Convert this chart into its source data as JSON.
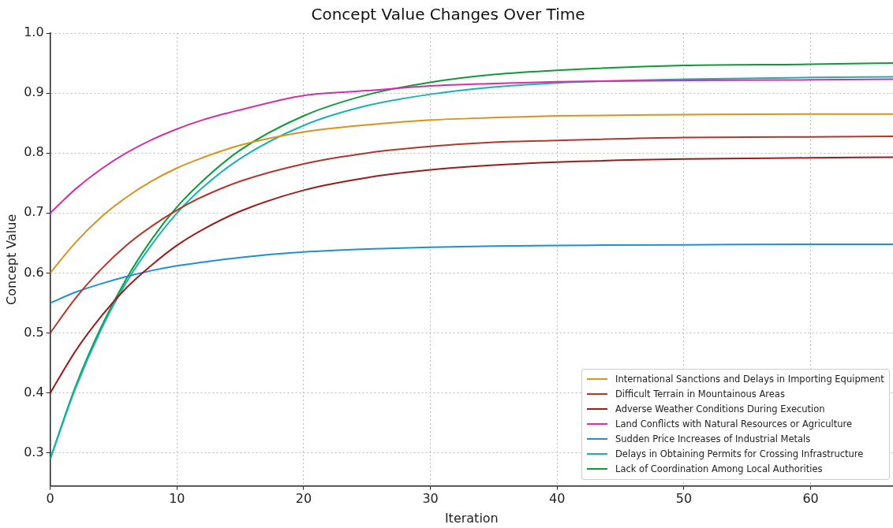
{
  "chart_data": {
    "type": "line",
    "title": "Concept Value Changes Over Time",
    "xlabel": "Iteration",
    "ylabel": "Concept Value",
    "x": [
      0,
      2,
      4,
      6,
      8,
      10,
      12,
      15,
      20,
      25,
      30,
      35,
      40,
      50,
      60,
      66.5
    ],
    "series": [
      {
        "name": "International Sanctions and Delays in Importing Equipment",
        "color": "#d9921a",
        "values": [
          0.6,
          0.651,
          0.693,
          0.726,
          0.753,
          0.775,
          0.792,
          0.813,
          0.835,
          0.847,
          0.855,
          0.859,
          0.862,
          0.864,
          0.865,
          0.865
        ]
      },
      {
        "name": "Difficult Terrain in Mountainous Areas",
        "color": "#b5352b",
        "values": [
          0.5,
          0.558,
          0.606,
          0.646,
          0.678,
          0.705,
          0.727,
          0.753,
          0.782,
          0.8,
          0.811,
          0.818,
          0.821,
          0.826,
          0.827,
          0.828
        ]
      },
      {
        "name": "Adverse Weather Conditions During Execution",
        "color": "#9b1c1c",
        "values": [
          0.4,
          0.47,
          0.527,
          0.575,
          0.613,
          0.646,
          0.672,
          0.703,
          0.738,
          0.759,
          0.772,
          0.78,
          0.785,
          0.79,
          0.792,
          0.793
        ]
      },
      {
        "name": "Land Conflicts with Natural Resources or Agriculture",
        "color": "#d62ea8",
        "values": [
          0.7,
          0.74,
          0.773,
          0.8,
          0.822,
          0.84,
          0.855,
          0.872,
          0.896,
          0.904,
          0.912,
          0.916,
          0.919,
          0.921,
          0.922,
          0.923
        ]
      },
      {
        "name": "Sudden Price Increases of Industrial Metals",
        "color": "#1f8fd6",
        "values": [
          0.55,
          0.568,
          0.582,
          0.594,
          0.604,
          0.612,
          0.618,
          0.626,
          0.635,
          0.64,
          0.643,
          0.645,
          0.646,
          0.647,
          0.648,
          0.648
        ]
      },
      {
        "name": "Delays in Obtaining Permits for Crossing Infrastructure",
        "color": "#17b3b3",
        "values": [
          0.29,
          0.408,
          0.505,
          0.584,
          0.647,
          0.7,
          0.742,
          0.791,
          0.846,
          0.879,
          0.898,
          0.91,
          0.917,
          0.923,
          0.926,
          0.927
        ]
      },
      {
        "name": "Lack of Coordination Among Local Authorities",
        "color": "#0f9a3a",
        "values": [
          0.29,
          0.411,
          0.509,
          0.59,
          0.656,
          0.71,
          0.753,
          0.805,
          0.862,
          0.897,
          0.918,
          0.931,
          0.938,
          0.946,
          0.948,
          0.95
        ]
      }
    ],
    "xlim": [
      0,
      66.5
    ],
    "xticks": [
      0,
      10,
      20,
      30,
      40,
      50,
      60
    ],
    "ylim": [
      0.245,
      1.0
    ],
    "yticks": [
      0.3,
      0.4,
      0.5,
      0.6,
      0.7,
      0.8,
      0.9,
      {
        "value": 1.0,
        "label": "1.0"
      }
    ],
    "grid": true,
    "legend": "bottom right",
    "marker": "none",
    "line_style": "solid"
  }
}
